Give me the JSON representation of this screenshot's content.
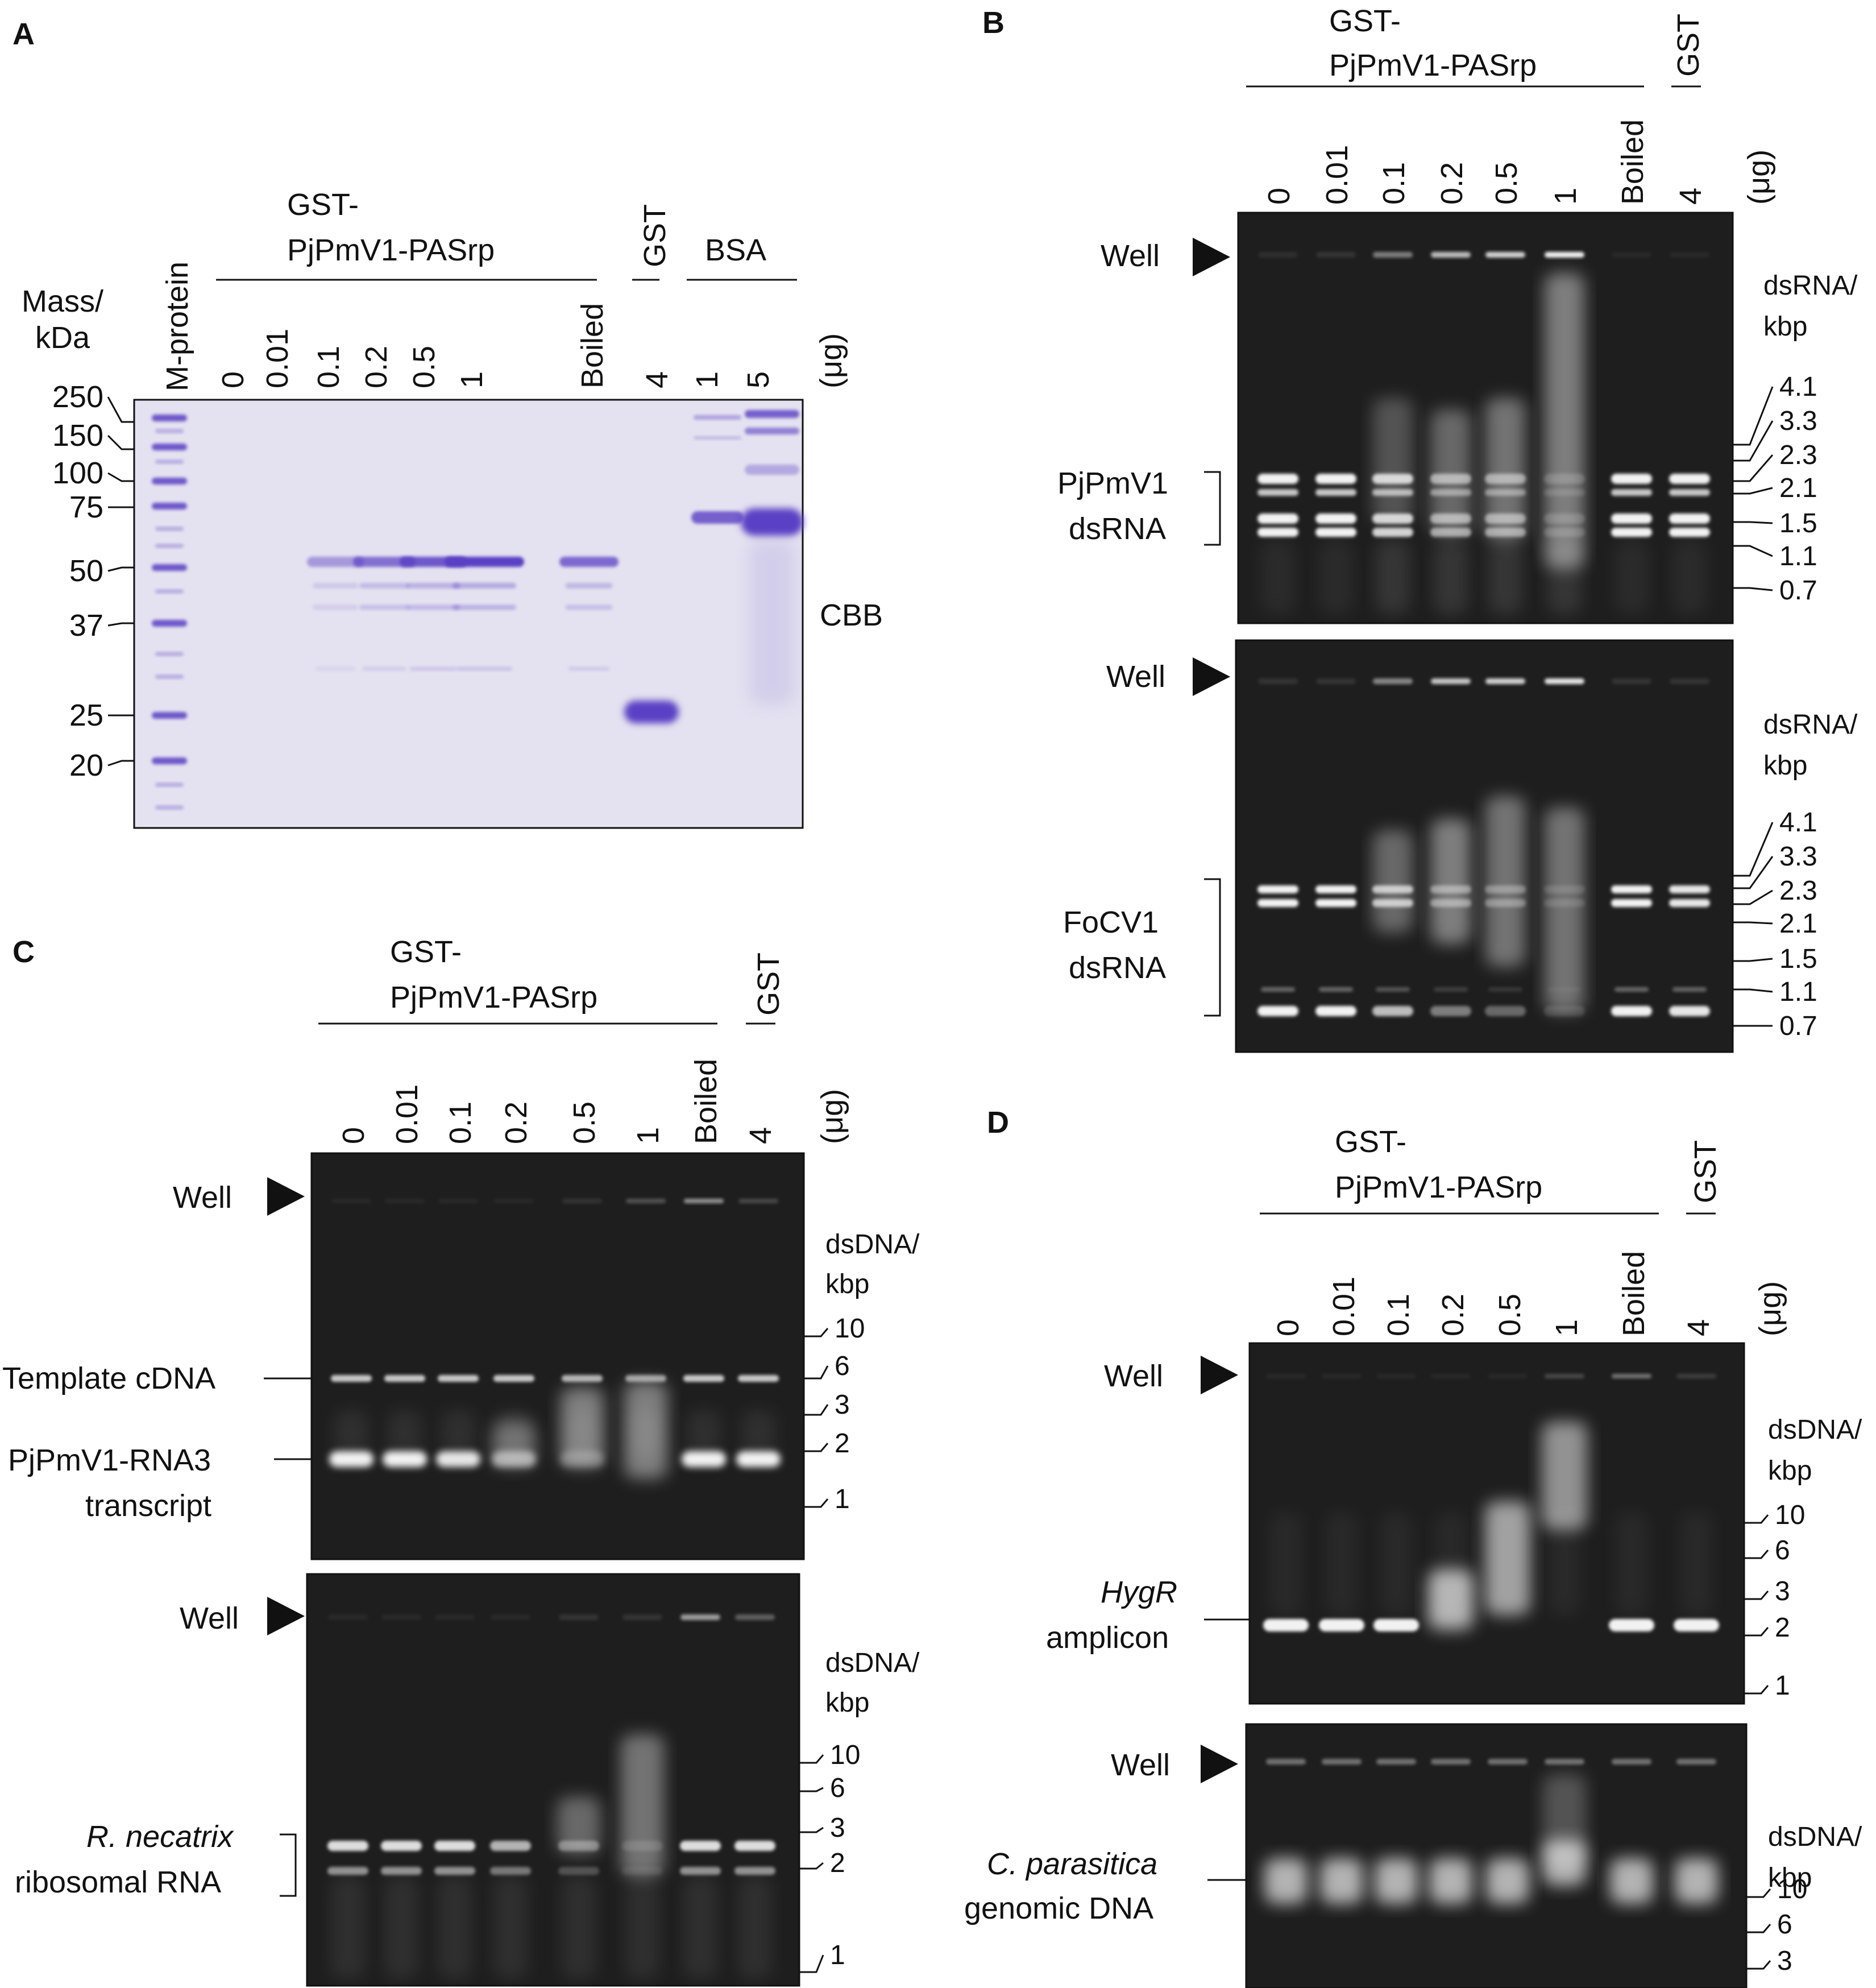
{
  "colors": {
    "coomassie_gel": "#e4e2f0",
    "protein_band": "#5a3fc4",
    "agarose_gel": "#1e1e1e",
    "nucleic_band": "#f2f2f2"
  },
  "panels": {
    "A": {
      "letter": "A",
      "group_label_line1": "GST-",
      "group_label_line2": "PjPmV1-PASrp",
      "gst_label": "GST",
      "bsa_label": "BSA",
      "marker_lane": "M-protein",
      "axis_label_line1": "Mass/",
      "axis_label_line2": "kDa",
      "lanes": [
        "0",
        "0.01",
        "0.1",
        "0.2",
        "0.5",
        "1",
        "Boiled",
        "4",
        "1",
        "5"
      ],
      "unit": "(μg)",
      "mass_markers": [
        "250",
        "150",
        "100",
        "75",
        "50",
        "37",
        "25",
        "20"
      ],
      "stain": "CBB"
    },
    "B": {
      "letter": "B",
      "group_label_line1": "GST-",
      "group_label_line2": "PjPmV1-PASrp",
      "gst_label": "GST",
      "lanes": [
        "0",
        "0.01",
        "0.1",
        "0.2",
        "0.5",
        "1",
        "Boiled",
        "4"
      ],
      "unit": "(μg)",
      "well_label": "Well",
      "axis_label_line1": "dsRNA/",
      "axis_label_line2": "kbp",
      "size_markers": [
        "4.1",
        "3.3",
        "2.3",
        "2.1",
        "1.5",
        "1.1",
        "0.7"
      ],
      "top_target_line1": "PjPmV1",
      "top_target_line2": "dsRNA",
      "bottom_target_line1": "FoCV1",
      "bottom_target_line2": "dsRNA"
    },
    "C": {
      "letter": "C",
      "group_label_line1": "GST-",
      "group_label_line2": "PjPmV1-PASrp",
      "gst_label": "GST",
      "lanes": [
        "0",
        "0.01",
        "0.1",
        "0.2",
        "0.5",
        "1",
        "Boiled",
        "4"
      ],
      "unit": "(μg)",
      "well_label": "Well",
      "axis_label_line1": "dsDNA/",
      "axis_label_line2": "kbp",
      "top_markers": [
        "10",
        "6",
        "3",
        "2",
        "1"
      ],
      "bottom_markers": [
        "10",
        "6",
        "3",
        "2",
        "1"
      ],
      "template_label": "Template cDNA",
      "transcript_line1": "PjPmV1-RNA3",
      "transcript_line2": "transcript",
      "rrna_line1": "R. necatrix",
      "rrna_line2": "ribosomal RNA"
    },
    "D": {
      "letter": "D",
      "group_label_line1": "GST-",
      "group_label_line2": "PjPmV1-PASrp",
      "gst_label": "GST",
      "lanes": [
        "0",
        "0.01",
        "0.1",
        "0.2",
        "0.5",
        "1",
        "Boiled",
        "4"
      ],
      "unit": "(μg)",
      "well_label": "Well",
      "axis_label_line1": "dsDNA/",
      "axis_label_line2": "kbp",
      "top_markers": [
        "10",
        "6",
        "3",
        "2",
        "1"
      ],
      "bottom_markers": [
        "10",
        "6",
        "3"
      ],
      "amplicon_line1": "HygR",
      "amplicon_line2": "amplicon",
      "genomic_line1": "C. parasitica",
      "genomic_line2": "genomic DNA"
    }
  }
}
